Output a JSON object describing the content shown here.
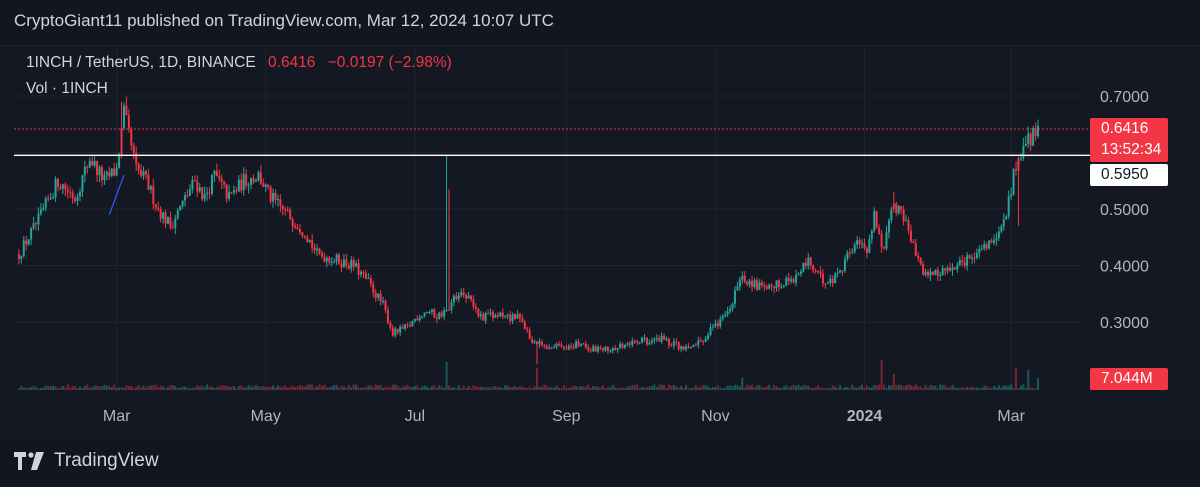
{
  "header": {
    "published": "CryptoGiant11 published on TradingView.com, Mar 12, 2024 10:07 UTC"
  },
  "legend": {
    "symbol": "1INCH / TetherUS, 1D, BINANCE",
    "last": "0.6416",
    "change": "−0.0197 (−2.98%)",
    "volume_label": "Vol · 1INCH"
  },
  "badges": {
    "last_price": "0.6416",
    "countdown": "13:52:34",
    "level": "0.5950",
    "volume": "7.044M"
  },
  "footer": {
    "brand": "TradingView"
  },
  "colors": {
    "up": "#26a69a",
    "down": "#f23645",
    "background": "#141823",
    "grid": "#1f2433",
    "level": "#ffffff",
    "drawing": "#2962ff"
  },
  "chart_data": {
    "type": "candlestick",
    "title": "1INCH / TetherUS, 1D, BINANCE",
    "x_ticks": [
      "Mar",
      "May",
      "Jul",
      "Sep",
      "Nov",
      "2024",
      "Mar"
    ],
    "x_tick_dates": [
      "2023-03-01",
      "2023-05-01",
      "2023-07-01",
      "2023-09-01",
      "2023-11-01",
      "2024-01-01",
      "2024-03-01"
    ],
    "y_ticks": [
      "0.7000",
      "0.5000",
      "0.4000",
      "0.3000"
    ],
    "y_tick_values": [
      0.7,
      0.5,
      0.4,
      0.3
    ],
    "ylim": [
      0.225,
      0.74
    ],
    "xlim": [
      "2023-01-18",
      "2024-03-30"
    ],
    "horizontal_level": 0.595,
    "last_price": 0.6416,
    "grid": true,
    "price_path": [
      [
        "2023-01-20",
        0.42
      ],
      [
        "2023-01-28",
        0.48
      ],
      [
        "2023-02-05",
        0.55
      ],
      [
        "2023-02-12",
        0.52
      ],
      [
        "2023-02-18",
        0.59
      ],
      [
        "2023-02-24",
        0.55
      ],
      [
        "2023-03-01",
        0.57
      ],
      [
        "2023-03-04",
        0.67
      ],
      [
        "2023-03-09",
        0.57
      ],
      [
        "2023-03-13",
        0.55
      ],
      [
        "2023-03-18",
        0.5
      ],
      [
        "2023-03-23",
        0.47
      ],
      [
        "2023-03-28",
        0.51
      ],
      [
        "2023-04-02",
        0.55
      ],
      [
        "2023-04-06",
        0.52
      ],
      [
        "2023-04-10",
        0.56
      ],
      [
        "2023-04-16",
        0.52
      ],
      [
        "2023-04-22",
        0.55
      ],
      [
        "2023-04-28",
        0.56
      ],
      [
        "2023-05-03",
        0.52
      ],
      [
        "2023-05-10",
        0.49
      ],
      [
        "2023-05-17",
        0.46
      ],
      [
        "2023-05-22",
        0.42
      ],
      [
        "2023-05-30",
        0.41
      ],
      [
        "2023-06-06",
        0.4
      ],
      [
        "2023-06-12",
        0.37
      ],
      [
        "2023-06-18",
        0.33
      ],
      [
        "2023-06-22",
        0.28
      ],
      [
        "2023-06-28",
        0.29
      ],
      [
        "2023-07-02",
        0.31
      ],
      [
        "2023-07-06",
        0.32
      ],
      [
        "2023-07-10",
        0.31
      ],
      [
        "2023-07-14",
        0.32
      ],
      [
        "2023-07-20",
        0.36
      ],
      [
        "2023-07-23",
        0.34
      ],
      [
        "2023-07-28",
        0.31
      ],
      [
        "2023-08-02",
        0.31
      ],
      [
        "2023-08-08",
        0.31
      ],
      [
        "2023-08-14",
        0.305
      ],
      [
        "2023-08-17",
        0.27
      ],
      [
        "2023-08-22",
        0.26
      ],
      [
        "2023-08-30",
        0.255
      ],
      [
        "2023-09-06",
        0.26
      ],
      [
        "2023-09-15",
        0.25
      ],
      [
        "2023-09-22",
        0.255
      ],
      [
        "2023-10-01",
        0.265
      ],
      [
        "2023-10-10",
        0.27
      ],
      [
        "2023-10-16",
        0.26
      ],
      [
        "2023-10-21",
        0.25
      ],
      [
        "2023-10-27",
        0.27
      ],
      [
        "2023-11-02",
        0.3
      ],
      [
        "2023-11-07",
        0.32
      ],
      [
        "2023-11-11",
        0.38
      ],
      [
        "2023-11-16",
        0.37
      ],
      [
        "2023-11-22",
        0.355
      ],
      [
        "2023-11-28",
        0.37
      ],
      [
        "2023-12-04",
        0.38
      ],
      [
        "2023-12-09",
        0.41
      ],
      [
        "2023-12-13",
        0.38
      ],
      [
        "2023-12-18",
        0.37
      ],
      [
        "2023-12-23",
        0.4
      ],
      [
        "2023-12-28",
        0.44
      ],
      [
        "2024-01-02",
        0.43
      ],
      [
        "2024-01-05",
        0.49
      ],
      [
        "2024-01-09",
        0.42
      ],
      [
        "2024-01-12",
        0.51
      ],
      [
        "2024-01-16",
        0.5
      ],
      [
        "2024-01-21",
        0.43
      ],
      [
        "2024-01-26",
        0.38
      ],
      [
        "2024-02-01",
        0.39
      ],
      [
        "2024-02-06",
        0.39
      ],
      [
        "2024-02-12",
        0.41
      ],
      [
        "2024-02-18",
        0.43
      ],
      [
        "2024-02-23",
        0.44
      ],
      [
        "2024-02-28",
        0.49
      ],
      [
        "2024-03-02",
        0.56
      ],
      [
        "2024-03-05",
        0.6
      ],
      [
        "2024-03-08",
        0.62
      ],
      [
        "2024-03-12",
        0.645
      ]
    ],
    "spikes": [
      [
        "2023-03-03",
        0.69,
        "down"
      ],
      [
        "2023-07-14",
        0.595,
        "up"
      ],
      [
        "2023-07-15",
        0.535,
        "down"
      ],
      [
        "2023-08-20",
        0.225,
        "down"
      ],
      [
        "2024-01-13",
        0.53,
        "down"
      ],
      [
        "2024-03-04",
        0.47,
        "down"
      ]
    ],
    "volume_spikes": [
      [
        "2023-07-14",
        0.7
      ],
      [
        "2023-08-20",
        0.55
      ],
      [
        "2023-11-12",
        0.3
      ],
      [
        "2024-01-08",
        0.75
      ],
      [
        "2024-01-13",
        0.4
      ],
      [
        "2024-03-03",
        0.55
      ],
      [
        "2024-03-08",
        0.5
      ],
      [
        "2024-03-12",
        0.3
      ]
    ]
  }
}
